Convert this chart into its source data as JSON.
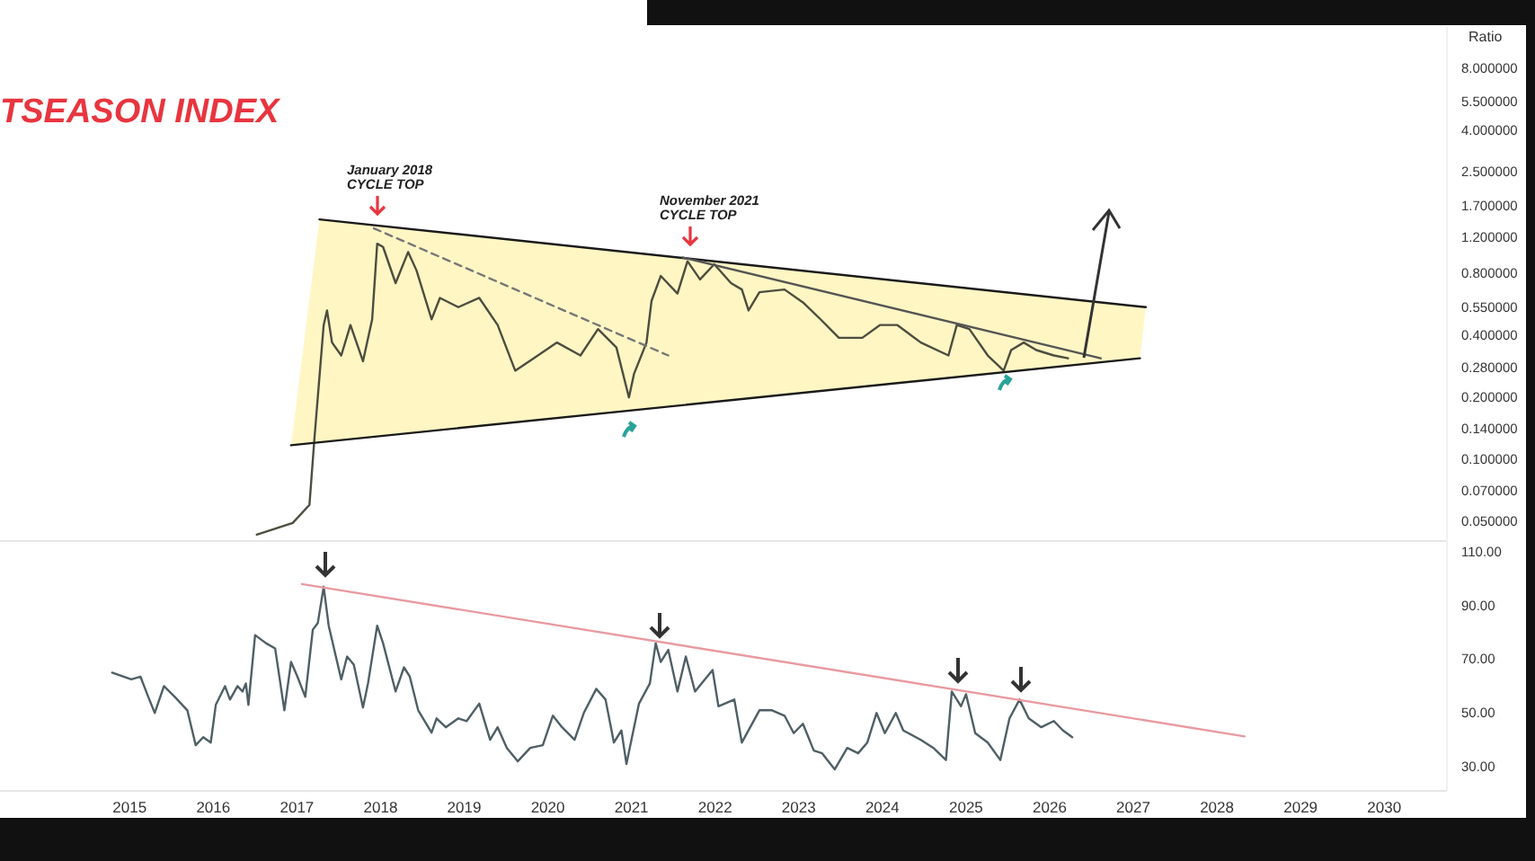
{
  "chart_data": [
    {
      "type": "line",
      "title": "TSEASON INDEX",
      "ylabel": "Ratio",
      "log": "y",
      "tick_labels": "y",
      "grid": false,
      "xlim": [
        2013.45,
        2030.75
      ],
      "ylim": [
        0.04,
        12.7
      ],
      "yticks": [
        {
          "value": 0.05,
          "label": "0.050000"
        },
        {
          "value": 0.07,
          "label": "0.070000"
        },
        {
          "value": 0.1,
          "label": "0.100000"
        },
        {
          "value": 0.14,
          "label": "0.140000"
        },
        {
          "value": 0.2,
          "label": "0.200000"
        },
        {
          "value": 0.28,
          "label": "0.280000"
        },
        {
          "value": 0.4,
          "label": "0.400000"
        },
        {
          "value": 0.55,
          "label": "0.550000"
        },
        {
          "value": 0.8,
          "label": "0.800000"
        },
        {
          "value": 1.2,
          "label": "1.200000"
        },
        {
          "value": 1.7,
          "label": "1.700000"
        },
        {
          "value": 2.5,
          "label": "2.500000"
        },
        {
          "value": 4,
          "label": "4.000000"
        },
        {
          "value": 5.5,
          "label": "5.500000"
        },
        {
          "value": 8,
          "label": "8.000000"
        }
      ],
      "annotations": [
        "January 2018\nCYCLE TOP",
        "November 2021\nCYCLE TOP"
      ],
      "series": [
        {
          "color": "#4d4d3f",
          "line_style": "solid",
          "x": [
            2016.52,
            2016.95,
            2017.15,
            2017.21,
            2017.32,
            2017.36,
            2017.42,
            2017.53,
            2017.64,
            2017.79,
            2017.9,
            2017.96,
            2018.03,
            2018.18,
            2018.33,
            2018.43,
            2018.61,
            2018.71,
            2018.93,
            2019.18,
            2019.4,
            2019.61,
            2019.83,
            2020.11,
            2020.39,
            2020.6,
            2020.82,
            2020.97,
            2021.03,
            2021.18,
            2021.24,
            2021.35,
            2021.55,
            2021.67,
            2021.82,
            2021.99,
            2022.19,
            2022.32,
            2022.4,
            2022.53,
            2022.83,
            2023.05,
            2023.26,
            2023.48,
            2023.76,
            2023.97,
            2024.18,
            2024.46,
            2024.79,
            2024.89,
            2025.04,
            2025.26,
            2025.45,
            2025.54,
            2025.69,
            2025.84,
            2026.05,
            2026.22
          ],
          "values": [
            0.043,
            0.049,
            0.06,
            0.127,
            0.45,
            0.53,
            0.37,
            0.32,
            0.45,
            0.3,
            0.48,
            1.12,
            1.08,
            0.72,
            1.02,
            0.83,
            0.48,
            0.61,
            0.55,
            0.61,
            0.45,
            0.27,
            0.31,
            0.37,
            0.32,
            0.43,
            0.35,
            0.2,
            0.26,
            0.37,
            0.59,
            0.78,
            0.64,
            0.92,
            0.75,
            0.89,
            0.72,
            0.67,
            0.53,
            0.65,
            0.67,
            0.58,
            0.48,
            0.39,
            0.39,
            0.45,
            0.45,
            0.37,
            0.32,
            0.45,
            0.43,
            0.32,
            0.27,
            0.34,
            0.37,
            0.34,
            0.32,
            0.31
          ]
        },
        {
          "color": "#1a1a1a",
          "line_style": "solid",
          "x": [
            2017.27,
            2027.15
          ],
          "values": [
            1.47,
            0.55
          ]
        },
        {
          "color": "#1a1a1a",
          "line_style": "solid",
          "x": [
            2016.93,
            2027.08
          ],
          "values": [
            0.117,
            0.31
          ]
        },
        {
          "color": "#777777",
          "line_style": "dashed",
          "x": [
            2017.92,
            2021.44
          ],
          "values": [
            1.33,
            0.32
          ]
        },
        {
          "color": "#555555",
          "line_style": "solid",
          "x": [
            2021.61,
            2026.61
          ],
          "values": [
            0.96,
            0.31
          ]
        }
      ]
    },
    {
      "type": "line",
      "grid": false,
      "xlim": [
        2013.45,
        2030.75
      ],
      "ylim": [
        21,
        114
      ],
      "xticks": [
        2015,
        2016,
        2017,
        2018,
        2019,
        2020,
        2021,
        2022,
        2023,
        2024,
        2025,
        2026,
        2027,
        2028,
        2029,
        2030
      ],
      "yticks": [
        {
          "value": 30,
          "label": "30.00"
        },
        {
          "value": 50,
          "label": "50.00"
        },
        {
          "value": 70,
          "label": "70.00"
        },
        {
          "value": 90,
          "label": "90.00"
        },
        {
          "value": 110,
          "label": "110.00"
        }
      ],
      "series": [
        {
          "color": "#4f5f66",
          "line_style": "solid",
          "x": [
            2014.79,
            2015.02,
            2015.13,
            2015.21,
            2015.3,
            2015.41,
            2015.54,
            2015.69,
            2015.79,
            2015.88,
            2015.97,
            2016.03,
            2016.14,
            2016.2,
            2016.29,
            2016.35,
            2016.39,
            2016.42,
            2016.5,
            2016.63,
            2016.74,
            2016.85,
            2016.93,
            2017.0,
            2017.1,
            2017.19,
            2017.25,
            2017.32,
            2017.38,
            2017.53,
            2017.6,
            2017.68,
            2017.79,
            2017.85,
            2017.96,
            2018.03,
            2018.18,
            2018.28,
            2018.35,
            2018.45,
            2018.61,
            2018.67,
            2018.78,
            2018.93,
            2019.03,
            2019.18,
            2019.31,
            2019.4,
            2019.51,
            2019.64,
            2019.79,
            2019.94,
            2020.06,
            2020.17,
            2020.32,
            2020.43,
            2020.58,
            2020.69,
            2020.79,
            2020.88,
            2020.94,
            2021.09,
            2021.22,
            2021.29,
            2021.35,
            2021.44,
            2021.55,
            2021.65,
            2021.76,
            2021.97,
            2022.04,
            2022.23,
            2022.32,
            2022.53,
            2022.68,
            2022.83,
            2022.94,
            2023.05,
            2023.18,
            2023.28,
            2023.43,
            2023.58,
            2023.71,
            2023.82,
            2023.93,
            2024.03,
            2024.16,
            2024.25,
            2024.46,
            2024.61,
            2024.76,
            2024.83,
            2024.94,
            2025.0,
            2025.11,
            2025.26,
            2025.41,
            2025.52,
            2025.64,
            2025.75,
            2025.9,
            2026.05,
            2026.16,
            2026.27
          ],
          "values": [
            65,
            62.5,
            63.5,
            57,
            50,
            60,
            56,
            51,
            38,
            41,
            39,
            53,
            60,
            55,
            60,
            58,
            61,
            53,
            79,
            76,
            74,
            51,
            69,
            64,
            56,
            81,
            83.5,
            97,
            82.5,
            62.5,
            71,
            68,
            52,
            61,
            82.5,
            76,
            58,
            67,
            63.5,
            51,
            42.7,
            48,
            44.7,
            48,
            47,
            53.5,
            40,
            44.7,
            37,
            32,
            37,
            38,
            49,
            44.7,
            40,
            50,
            59,
            55,
            39,
            43.5,
            31,
            53.5,
            61,
            76,
            69,
            73.5,
            58,
            71,
            58,
            66,
            52.5,
            55,
            39,
            51,
            51,
            49,
            42.5,
            46,
            36,
            35,
            29,
            37,
            35,
            39,
            50,
            42.5,
            50,
            43.5,
            40,
            37,
            32.5,
            58,
            52.5,
            57,
            42.5,
            39,
            32.5,
            48,
            55,
            48,
            44.7,
            47,
            43.5,
            41
          ]
        },
        {
          "color": "#e89aa0",
          "line_style": "solid",
          "x": [
            2017.06,
            2028.33
          ],
          "values": [
            98,
            41.3
          ]
        }
      ]
    }
  ]
}
